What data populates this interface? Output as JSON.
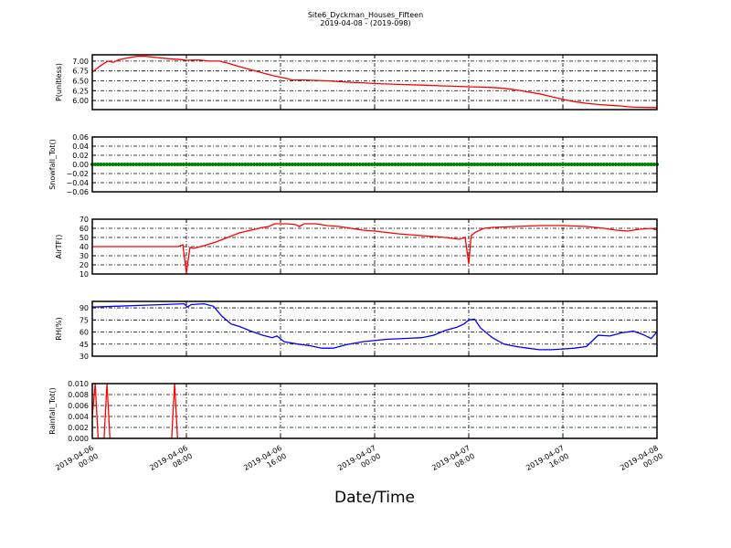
{
  "figure": {
    "title_line1": "Site6_Dyckman_Houses_Fifteen",
    "title_line2": "2019-04-08 - (2019-098)",
    "xlabel": "Date/Time"
  },
  "chart_data": {
    "type": "line",
    "x_unit": "hours since 2019-04-06 00:00",
    "xlim": [
      0,
      48
    ],
    "x_ticks": [
      0,
      8,
      16,
      24,
      32,
      40,
      48
    ],
    "x_tick_labels": [
      [
        "2019-04-06",
        "00:00"
      ],
      [
        "2019-04-06",
        "08:00"
      ],
      [
        "2019-04-06",
        "16:00"
      ],
      [
        "2019-04-07",
        "00:00"
      ],
      [
        "2019-04-07",
        "08:00"
      ],
      [
        "2019-04-07",
        "16:00"
      ],
      [
        "2019-04-08",
        "00:00"
      ]
    ],
    "grid": true,
    "panels": [
      {
        "ylabel": "P(unitless)",
        "color": "#ff0000",
        "ylim": [
          5.77,
          7.16
        ],
        "y_ticks": [
          6.0,
          6.25,
          6.5,
          6.75,
          7.0
        ],
        "y_tick_labels": [
          "6.00",
          "6.25",
          "6.50",
          "6.75",
          "7.00"
        ],
        "x": [
          0,
          0.6,
          1.3,
          1.8,
          2.3,
          3,
          3.8,
          4.5,
          5.5,
          6.5,
          7.5,
          8,
          9,
          10,
          10.8,
          11.5,
          12.5,
          13.5,
          14.5,
          15.5,
          16.5,
          17,
          18,
          20,
          22,
          23,
          24,
          26,
          28,
          30,
          31,
          32,
          33,
          34,
          35,
          36,
          37,
          38,
          39,
          40,
          41,
          42,
          43,
          44,
          45,
          46,
          48
        ],
        "values": [
          6.72,
          6.86,
          7.0,
          6.97,
          7.04,
          7.08,
          7.12,
          7.12,
          7.09,
          7.06,
          7.04,
          7.02,
          7.03,
          7.0,
          7.0,
          6.95,
          6.86,
          6.78,
          6.7,
          6.62,
          6.56,
          6.52,
          6.52,
          6.5,
          6.46,
          6.45,
          6.43,
          6.41,
          6.39,
          6.37,
          6.36,
          6.35,
          6.34,
          6.33,
          6.31,
          6.27,
          6.22,
          6.17,
          6.1,
          6.03,
          5.97,
          5.93,
          5.9,
          5.88,
          5.86,
          5.83,
          5.82
        ]
      },
      {
        "ylabel": "Snowfall_Tot()",
        "color": "#008000",
        "ylim": [
          -0.06,
          0.06
        ],
        "y_ticks": [
          -0.06,
          -0.04,
          -0.02,
          0.0,
          0.02,
          0.04,
          0.06
        ],
        "y_tick_labels": [
          "−0.06",
          "−0.04",
          "−0.02",
          "0.00",
          "0.02",
          "0.04",
          "0.06"
        ],
        "constant_value": 0.0,
        "sample_interval_hours": 0.25,
        "marker": "dot"
      },
      {
        "ylabel": "AirTF()",
        "color": "#ff0000",
        "ylim": [
          10,
          70
        ],
        "y_ticks": [
          10,
          20,
          30,
          40,
          50,
          60,
          70
        ],
        "y_tick_labels": [
          "10",
          "20",
          "30",
          "40",
          "50",
          "60",
          "70"
        ],
        "x": [
          0,
          2,
          4,
          6,
          7.3,
          7.7,
          8.0,
          8.3,
          8.6,
          9.5,
          10.5,
          11.5,
          12.5,
          13.5,
          14.5,
          15,
          15.5,
          16.5,
          17.3,
          17.6,
          18,
          19,
          20,
          21,
          22,
          23,
          24,
          26,
          28,
          30,
          31.2,
          31.7,
          32.0,
          32.2,
          32.6,
          33.3,
          34,
          36,
          38,
          40,
          42,
          43.5,
          44.5,
          45.5,
          46.5,
          47.5,
          48
        ],
        "values": [
          40,
          40,
          40,
          40,
          40,
          42,
          11,
          39,
          38,
          41,
          45,
          50,
          55,
          58,
          61,
          62,
          65,
          65,
          64,
          62,
          65,
          65,
          63,
          62,
          60,
          58,
          57,
          54,
          52,
          50,
          48,
          50,
          21,
          52,
          56,
          60,
          61,
          62,
          63,
          63,
          62,
          60,
          58,
          57,
          59,
          60,
          58
        ]
      },
      {
        "ylabel": "RH(%)",
        "color": "#0000ff",
        "ylim": [
          30,
          98
        ],
        "y_ticks": [
          30,
          45,
          60,
          75,
          90
        ],
        "y_tick_labels": [
          "30",
          "45",
          "60",
          "75",
          "90"
        ],
        "x": [
          0,
          2,
          4,
          6,
          7.8,
          8.1,
          8.4,
          9.5,
          10.3,
          11,
          11.8,
          12.5,
          13.5,
          14.5,
          15.3,
          15.7,
          16.3,
          17.5,
          18.5,
          19.5,
          20.5,
          21.5,
          23,
          25,
          26.5,
          28,
          29,
          30,
          31,
          31.6,
          32,
          32.5,
          33,
          34,
          35,
          36,
          37,
          38,
          39,
          40,
          41,
          42,
          43,
          44,
          45,
          46,
          46.8,
          47.5,
          48
        ],
        "values": [
          91,
          92,
          93,
          94,
          95,
          91,
          94,
          95,
          92,
          80,
          70,
          67,
          61,
          56,
          53,
          55,
          48,
          45,
          43,
          40,
          40,
          44,
          48,
          51,
          52,
          53,
          56,
          62,
          66,
          70,
          75,
          76,
          65,
          53,
          45,
          42,
          40,
          38,
          38,
          39,
          40,
          42,
          56,
          55,
          59,
          61,
          57,
          52,
          60
        ]
      },
      {
        "ylabel": "Rainfall_Tot()",
        "color": "#ff0000",
        "ylim": [
          0.0,
          0.01
        ],
        "y_ticks": [
          0.0,
          0.002,
          0.004,
          0.006,
          0.008,
          0.01
        ],
        "y_tick_labels": [
          "0.000",
          "0.002",
          "0.004",
          "0.006",
          "0.008",
          "0.010"
        ],
        "x": [
          0,
          0.25,
          0.5,
          1.0,
          1.25,
          1.5,
          6.75,
          7.0,
          7.25,
          48
        ],
        "values": [
          0.004,
          0.01,
          0.0,
          0.0,
          0.01,
          0.0,
          0.0,
          0.01,
          0.0,
          0.0
        ]
      }
    ]
  }
}
